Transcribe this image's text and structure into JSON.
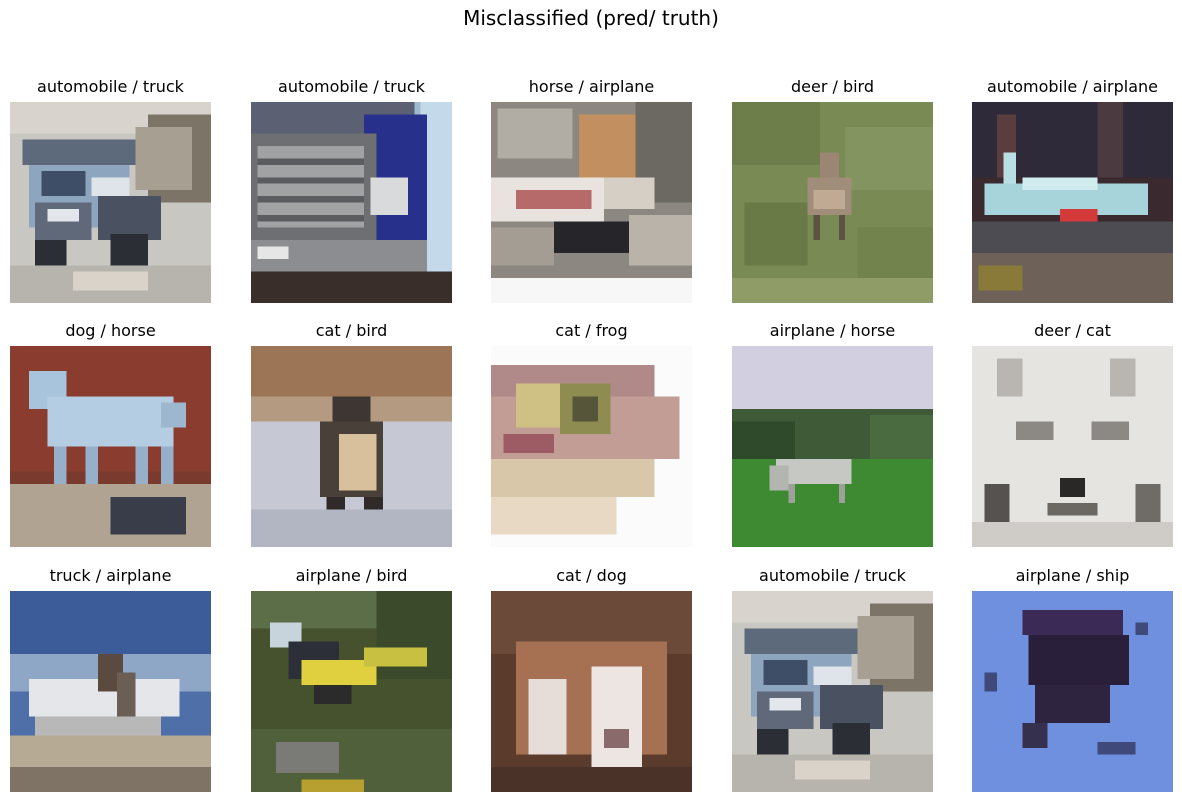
{
  "figure": {
    "title": "Misclassified (pred/ truth)"
  },
  "panels": [
    {
      "label": "automobile / truck",
      "pred": "automobile",
      "truth": "truck",
      "subject": "dump truck on a city street"
    },
    {
      "label": "automobile / truck",
      "pred": "automobile",
      "truth": "truck",
      "subject": "front grille of a blue truck"
    },
    {
      "label": "horse / airplane",
      "pred": "horse",
      "truth": "airplane",
      "subject": "small white airplane in a hangar"
    },
    {
      "label": "deer / bird",
      "pred": "deer",
      "truth": "bird",
      "subject": "brown bird standing in grass"
    },
    {
      "label": "automobile / airplane",
      "pred": "automobile",
      "truth": "airplane",
      "subject": "light blue jet on a runway"
    },
    {
      "label": "dog / horse",
      "pred": "dog",
      "truth": "horse",
      "subject": "pale blue toy horse"
    },
    {
      "label": "cat / bird",
      "pred": "cat",
      "truth": "bird",
      "subject": "penguin on ice"
    },
    {
      "label": "cat / frog",
      "pred": "cat",
      "truth": "frog",
      "subject": "close-up of a frog head"
    },
    {
      "label": "airplane / horse",
      "pred": "airplane",
      "truth": "horse",
      "subject": "white horse grazing on a field"
    },
    {
      "label": "deer / cat",
      "pred": "deer",
      "truth": "cat",
      "subject": "sketch of a white cat face"
    },
    {
      "label": "truck / airplane",
      "pred": "truck",
      "truth": "airplane",
      "subject": "white aircraft on the ground"
    },
    {
      "label": "airplane / bird",
      "pred": "airplane",
      "truth": "bird",
      "subject": "yellow and black bird on grass"
    },
    {
      "label": "cat / dog",
      "pred": "cat",
      "truth": "dog",
      "subject": "brown and white puppy lying down"
    },
    {
      "label": "automobile / truck",
      "pred": "automobile",
      "truth": "truck",
      "subject": "dump truck on a city street"
    },
    {
      "label": "airplane / ship",
      "pred": "airplane",
      "truth": "ship",
      "subject": "dark hull shape on blue water"
    }
  ]
}
